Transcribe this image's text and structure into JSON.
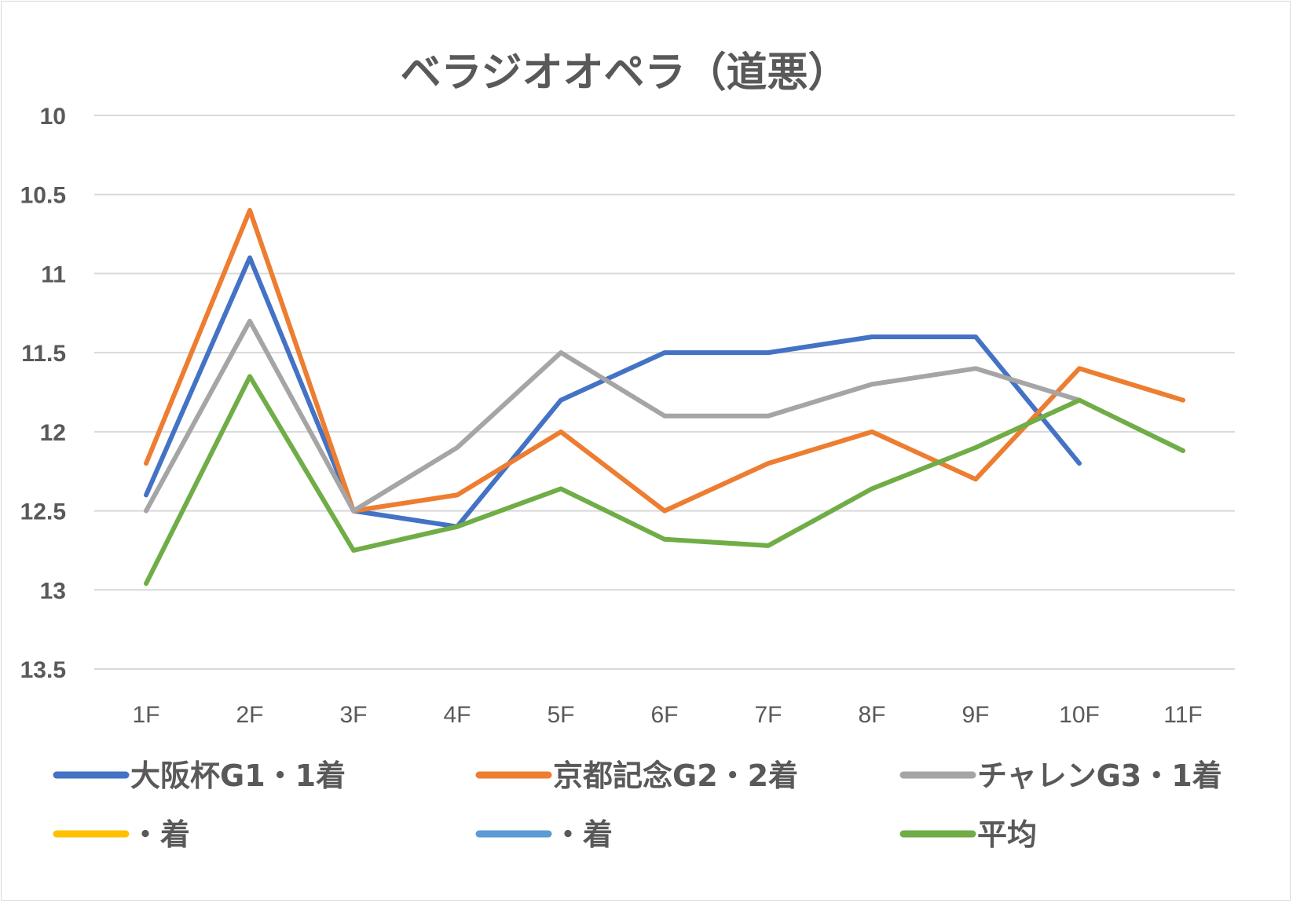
{
  "chart_data": {
    "type": "line",
    "title": "ベラジオオペラ（道悪）",
    "categories": [
      "1F",
      "2F",
      "3F",
      "4F",
      "5F",
      "6F",
      "7F",
      "8F",
      "9F",
      "10F",
      "11F"
    ],
    "y_axis": {
      "min": 10,
      "max": 13.5,
      "reversed": true,
      "ticks": [
        "10",
        "10.5",
        "11",
        "11.5",
        "12",
        "12.5",
        "13",
        "13.5"
      ],
      "tick_values": [
        10,
        10.5,
        11,
        11.5,
        12,
        12.5,
        13,
        13.5
      ]
    },
    "grid": true,
    "legend_position": "bottom",
    "series": [
      {
        "name": "大阪杯G1・1着",
        "color": "#4472c4",
        "values": [
          12.4,
          10.9,
          12.5,
          12.6,
          11.8,
          11.5,
          11.5,
          11.4,
          11.4,
          12.2,
          null
        ]
      },
      {
        "name": "京都記念G2・2着",
        "color": "#ed7d31",
        "values": [
          12.2,
          10.6,
          12.5,
          12.4,
          12.0,
          12.5,
          12.2,
          12.0,
          12.3,
          11.6,
          11.8
        ]
      },
      {
        "name": "チャレンG3・1着",
        "color": "#a5a5a5",
        "values": [
          12.5,
          11.3,
          12.5,
          12.1,
          11.5,
          11.9,
          11.9,
          11.7,
          11.6,
          11.8,
          null
        ]
      },
      {
        "name": "・着",
        "color": "#ffc000",
        "values": [
          null,
          null,
          null,
          null,
          null,
          null,
          null,
          null,
          null,
          null,
          null
        ]
      },
      {
        "name": "・着",
        "color": "#5b9bd5",
        "values": [
          null,
          null,
          null,
          null,
          null,
          null,
          null,
          null,
          null,
          null,
          null
        ]
      },
      {
        "name": "平均",
        "color": "#70ad47",
        "values": [
          12.96,
          11.65,
          12.75,
          12.6,
          12.36,
          12.68,
          12.72,
          12.36,
          12.1,
          11.8,
          12.12
        ]
      }
    ]
  }
}
